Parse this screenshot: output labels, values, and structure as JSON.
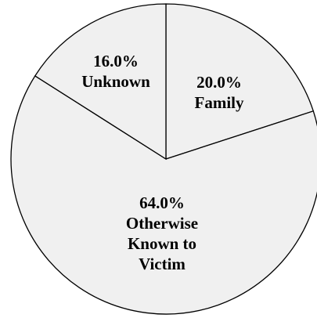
{
  "chart_data": {
    "type": "pie",
    "slices": [
      {
        "category": "Family",
        "value": 20.0,
        "percent_label": "20.0%",
        "label_lines": [
          "Family"
        ]
      },
      {
        "category": "Otherwise Known to Victim",
        "value": 64.0,
        "percent_label": "64.0%",
        "label_lines": [
          "Otherwise",
          "Known to",
          "Victim"
        ]
      },
      {
        "category": "Unknown",
        "value": 16.0,
        "percent_label": "16.0%",
        "label_lines": [
          "Unknown"
        ]
      }
    ],
    "start_angle_deg": 0,
    "direction": "clockwise",
    "slice_fill": "#f0f0f0",
    "edge_color": "#000000",
    "legend": "none"
  }
}
